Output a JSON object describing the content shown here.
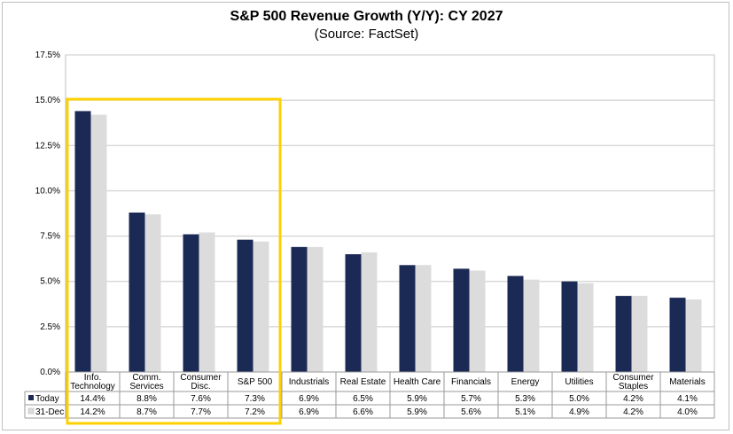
{
  "chart_data": {
    "type": "bar",
    "title": "S&P 500 Revenue Growth (Y/Y): CY 2027",
    "subtitle": "(Source: FactSet)",
    "categories": [
      [
        "Info.",
        "Technology"
      ],
      [
        "Comm.",
        "Services"
      ],
      [
        "Consumer",
        "Disc."
      ],
      [
        "S&P 500"
      ],
      [
        "Industrials"
      ],
      [
        "Real Estate"
      ],
      [
        "Health Care"
      ],
      [
        "Financials"
      ],
      [
        "Energy"
      ],
      [
        "Utilities"
      ],
      [
        "Consumer",
        "Staples"
      ],
      [
        "Materials"
      ]
    ],
    "series": [
      {
        "name": "Today",
        "color": "#1b2a55",
        "values": [
          14.4,
          8.8,
          7.6,
          7.3,
          6.9,
          6.5,
          5.9,
          5.7,
          5.3,
          5.0,
          4.2,
          4.1
        ],
        "labels": [
          "14.4%",
          "8.8%",
          "7.6%",
          "7.3%",
          "6.9%",
          "6.5%",
          "5.9%",
          "5.7%",
          "5.3%",
          "5.0%",
          "4.2%",
          "4.1%"
        ]
      },
      {
        "name": "31-Dec",
        "color": "#dcdcdc",
        "values": [
          14.2,
          8.7,
          7.7,
          7.2,
          6.9,
          6.6,
          5.9,
          5.6,
          5.1,
          4.9,
          4.2,
          4.0
        ],
        "labels": [
          "14.2%",
          "8.7%",
          "7.7%",
          "7.2%",
          "6.9%",
          "6.6%",
          "5.9%",
          "5.6%",
          "5.1%",
          "4.9%",
          "4.2%",
          "4.0%"
        ]
      }
    ],
    "ylim": [
      0,
      17.5
    ],
    "yticks": [
      "0.0%",
      "2.5%",
      "5.0%",
      "7.5%",
      "10.0%",
      "12.5%",
      "15.0%",
      "17.5%"
    ],
    "grid": true,
    "legend": "data-table-left",
    "highlight": {
      "from_index": 0,
      "to_index": 3,
      "color": "#ffd000"
    }
  }
}
